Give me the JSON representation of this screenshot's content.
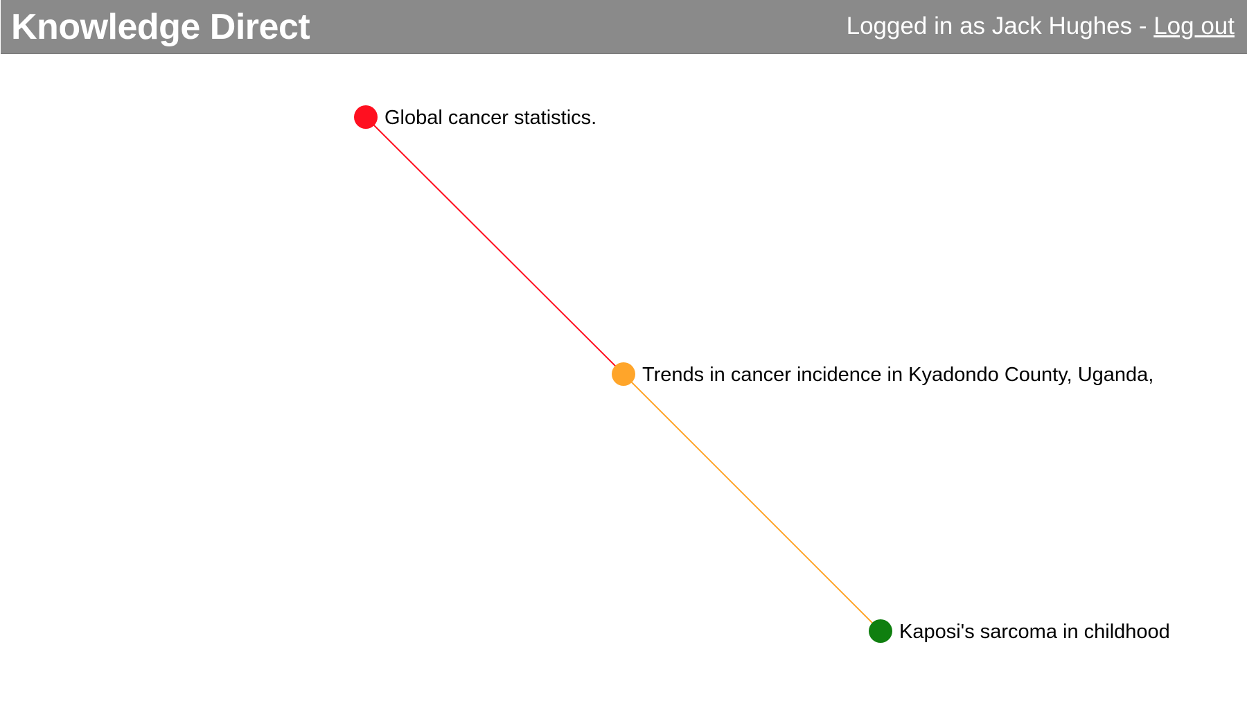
{
  "header": {
    "brand": "Knowledge Direct",
    "account_prefix": "Logged in as Jack Hughes - ",
    "logout_label": "Log out",
    "background_color": "#8a8a8a"
  },
  "graph": {
    "nodes": [
      {
        "id": "n1",
        "title": "Global cancer statistics.",
        "color": "#ff1020"
      },
      {
        "id": "n2",
        "title": "Trends in cancer incidence in Kyadondo County, Uganda,",
        "color": "#ffa52a"
      },
      {
        "id": "n3",
        "title": "Kaposi's sarcoma in childhood",
        "color": "#0f7f0f"
      }
    ],
    "edges": [
      {
        "from": "n1",
        "to": "n2",
        "color": "#ff1020"
      },
      {
        "from": "n2",
        "to": "n3",
        "color": "#ffa52a"
      }
    ]
  }
}
